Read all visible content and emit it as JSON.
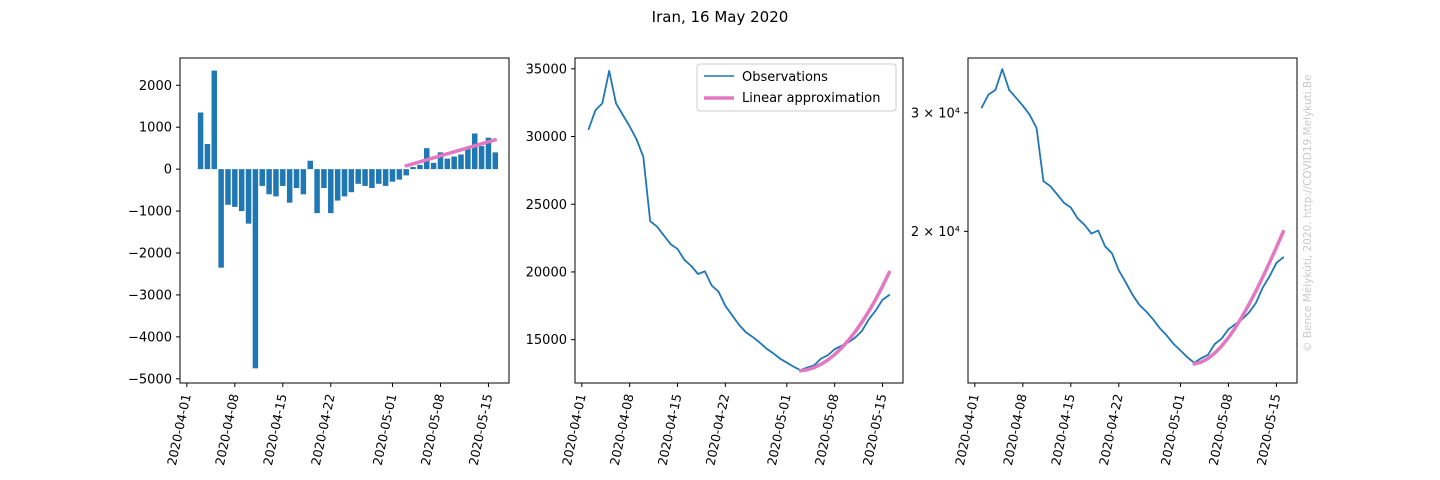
{
  "figure": {
    "suptitle": "Iran, 16 May 2020",
    "watermark": "© Bence Mélykúti, 2020. http://COVID19.Melykuti.Be"
  },
  "colors": {
    "bars": "#1f77b4",
    "observations": "#1f77b4",
    "approximation": "#e377c2",
    "axes": "#000000",
    "watermark": "#c8c8c8"
  },
  "x_ticks": [
    "2020-04-01",
    "2020-04-08",
    "2020-04-15",
    "2020-04-22",
    "2020-05-01",
    "2020-05-08",
    "2020-05-15"
  ],
  "legend": {
    "observations": "Observations",
    "approximation": "Linear approximation"
  },
  "chart_data": [
    {
      "type": "bar",
      "title": "",
      "xlabel": "",
      "ylabel": "",
      "x": [
        "2020-04-03",
        "2020-04-04",
        "2020-04-05",
        "2020-04-06",
        "2020-04-07",
        "2020-04-08",
        "2020-04-09",
        "2020-04-10",
        "2020-04-11",
        "2020-04-12",
        "2020-04-13",
        "2020-04-14",
        "2020-04-15",
        "2020-04-16",
        "2020-04-17",
        "2020-04-18",
        "2020-04-19",
        "2020-04-20",
        "2020-04-21",
        "2020-04-22",
        "2020-04-23",
        "2020-04-24",
        "2020-04-25",
        "2020-04-26",
        "2020-04-27",
        "2020-04-28",
        "2020-04-29",
        "2020-04-30",
        "2020-05-01",
        "2020-05-02",
        "2020-05-03",
        "2020-05-04",
        "2020-05-05",
        "2020-05-06",
        "2020-05-07",
        "2020-05-08",
        "2020-05-09",
        "2020-05-10",
        "2020-05-11",
        "2020-05-12",
        "2020-05-13",
        "2020-05-14",
        "2020-05-15",
        "2020-05-16"
      ],
      "values": [
        1350,
        600,
        2350,
        -2350,
        -850,
        -900,
        -1000,
        -1300,
        -4750,
        -400,
        -600,
        -650,
        -400,
        -800,
        -450,
        -600,
        200,
        -1050,
        -450,
        -1050,
        -750,
        -650,
        -550,
        -350,
        -400,
        -450,
        -350,
        -400,
        -300,
        -250,
        -150,
        50,
        100,
        500,
        150,
        400,
        250,
        300,
        350,
        500,
        850,
        550,
        750,
        400
      ],
      "ylim": [
        -5100,
        2650
      ],
      "yticks": [
        -5000,
        -4000,
        -3000,
        -2000,
        -1000,
        0,
        1000,
        2000
      ],
      "approximation": {
        "x": [
          "2020-05-03",
          "2020-05-16"
        ],
        "y": [
          80,
          700
        ]
      }
    },
    {
      "type": "line",
      "title": "",
      "xlabel": "",
      "ylabel": "",
      "legend_position": "top-right",
      "x": [
        "2020-04-02",
        "2020-04-03",
        "2020-04-04",
        "2020-04-05",
        "2020-04-06",
        "2020-04-07",
        "2020-04-08",
        "2020-04-09",
        "2020-04-10",
        "2020-04-11",
        "2020-04-12",
        "2020-04-13",
        "2020-04-14",
        "2020-04-15",
        "2020-04-16",
        "2020-04-17",
        "2020-04-18",
        "2020-04-19",
        "2020-04-20",
        "2020-04-21",
        "2020-04-22",
        "2020-04-23",
        "2020-04-24",
        "2020-04-25",
        "2020-04-26",
        "2020-04-27",
        "2020-04-28",
        "2020-04-29",
        "2020-04-30",
        "2020-05-01",
        "2020-05-02",
        "2020-05-03",
        "2020-05-04",
        "2020-05-05",
        "2020-05-06",
        "2020-05-07",
        "2020-05-08",
        "2020-05-09",
        "2020-05-10",
        "2020-05-11",
        "2020-05-12",
        "2020-05-13",
        "2020-05-14",
        "2020-05-15",
        "2020-05-16"
      ],
      "series": [
        {
          "name": "Observations",
          "values": [
            30550,
            31950,
            32450,
            34850,
            32450,
            31600,
            30750,
            29800,
            28500,
            23750,
            23350,
            22700,
            22050,
            21700,
            20900,
            20450,
            19850,
            20050,
            19000,
            18550,
            17500,
            16800,
            16100,
            15550,
            15200,
            14800,
            14350,
            14000,
            13600,
            13300,
            13000,
            12750,
            12950,
            13100,
            13600,
            13850,
            14300,
            14550,
            14800,
            15150,
            15650,
            16500,
            17150,
            17950,
            18300
          ]
        },
        {
          "name": "Linear approximation",
          "x": [
            "2020-05-03",
            "2020-05-04",
            "2020-05-05",
            "2020-05-06",
            "2020-05-07",
            "2020-05-08",
            "2020-05-09",
            "2020-05-10",
            "2020-05-11",
            "2020-05-12",
            "2020-05-13",
            "2020-05-14",
            "2020-05-15",
            "2020-05-16"
          ],
          "values": [
            12700,
            12780,
            12940,
            13180,
            13500,
            13900,
            14380,
            14940,
            15580,
            16300,
            17100,
            17980,
            18940,
            19980
          ]
        }
      ],
      "ylim": [
        11800,
        35800
      ],
      "yticks": [
        15000,
        20000,
        25000,
        30000,
        35000
      ]
    },
    {
      "type": "line",
      "title": "",
      "xlabel": "",
      "ylabel": "",
      "log_scale_y": true,
      "yticks": [
        {
          "value": 30000,
          "label": "3 × 10⁴"
        },
        {
          "value": 20000,
          "label": "2 × 10⁴"
        }
      ],
      "ylim": [
        11900,
        36200
      ],
      "x_from_chart": 1
    }
  ]
}
